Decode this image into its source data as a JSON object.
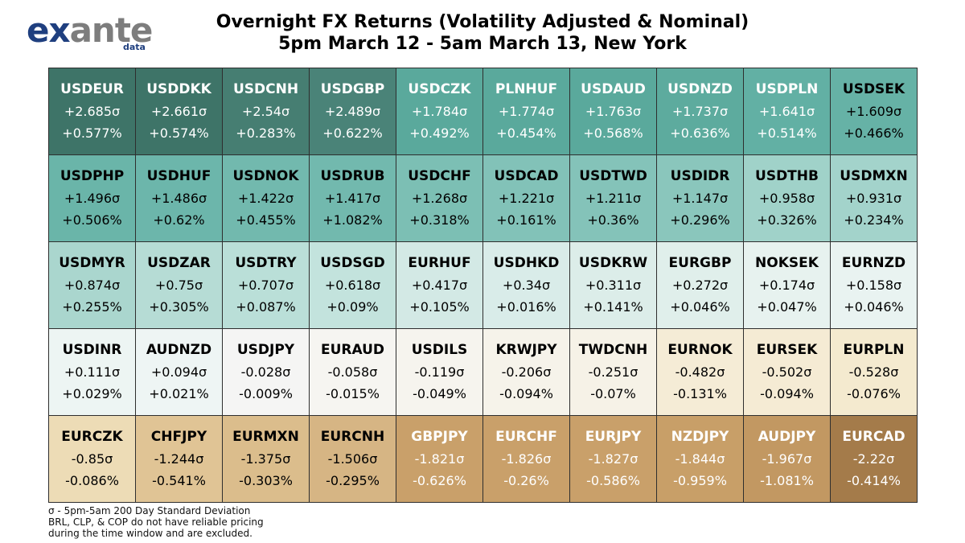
{
  "logo": {
    "word_part1": "ex",
    "word_part2": "ante",
    "sub": "data"
  },
  "title": {
    "line1": "Overnight FX Returns (Volatility Adjusted & Nominal)",
    "line2": "5pm March 12 - 5am March 13, New York"
  },
  "footnote": {
    "line1": "σ - 5pm-5am 200 Day Standard Deviation",
    "line2": "BRL, CLP, & COP do not have reliable pricing",
    "line3": "during the time window and are excluded."
  },
  "chart_data": {
    "type": "heatmap",
    "columns": 10,
    "cells": [
      {
        "pair": "USDEUR",
        "sigma": "+2.685σ",
        "pct": "+0.577%",
        "bg": "#3e7468",
        "fg": "#ffffff"
      },
      {
        "pair": "USDDKK",
        "sigma": "+2.661σ",
        "pct": "+0.574%",
        "bg": "#3e7468",
        "fg": "#ffffff"
      },
      {
        "pair": "USDCNH",
        "sigma": "+2.54σ",
        "pct": "+0.283%",
        "bg": "#467e72",
        "fg": "#ffffff"
      },
      {
        "pair": "USDGBP",
        "sigma": "+2.489σ",
        "pct": "+0.622%",
        "bg": "#4a8378",
        "fg": "#ffffff"
      },
      {
        "pair": "USDCZK",
        "sigma": "+1.784σ",
        "pct": "+0.492%",
        "bg": "#5aa99c",
        "fg": "#ffffff"
      },
      {
        "pair": "PLNHUF",
        "sigma": "+1.774σ",
        "pct": "+0.454%",
        "bg": "#5aa99c",
        "fg": "#ffffff"
      },
      {
        "pair": "USDAUD",
        "sigma": "+1.763σ",
        "pct": "+0.568%",
        "bg": "#5aa99c",
        "fg": "#ffffff"
      },
      {
        "pair": "USDNZD",
        "sigma": "+1.737σ",
        "pct": "+0.636%",
        "bg": "#5dab9e",
        "fg": "#ffffff"
      },
      {
        "pair": "USDPLN",
        "sigma": "+1.641σ",
        "pct": "+0.514%",
        "bg": "#62b0a4",
        "fg": "#ffffff"
      },
      {
        "pair": "USDSEK",
        "sigma": "+1.609σ",
        "pct": "+0.466%",
        "bg": "#66b2a6",
        "fg": "#000000"
      },
      {
        "pair": "USDPHP",
        "sigma": "+1.496σ",
        "pct": "+0.506%",
        "bg": "#6ab5a9",
        "fg": "#000000"
      },
      {
        "pair": "USDHUF",
        "sigma": "+1.486σ",
        "pct": "+0.62%",
        "bg": "#6cb6ab",
        "fg": "#000000"
      },
      {
        "pair": "USDNOK",
        "sigma": "+1.422σ",
        "pct": "+0.455%",
        "bg": "#72b9ae",
        "fg": "#000000"
      },
      {
        "pair": "USDRUB",
        "sigma": "+1.417σ",
        "pct": "+1.082%",
        "bg": "#72b9ae",
        "fg": "#000000"
      },
      {
        "pair": "USDCHF",
        "sigma": "+1.268σ",
        "pct": "+0.318%",
        "bg": "#7cbfb4",
        "fg": "#000000"
      },
      {
        "pair": "USDCAD",
        "sigma": "+1.221σ",
        "pct": "+0.161%",
        "bg": "#82c2b8",
        "fg": "#000000"
      },
      {
        "pair": "USDTWD",
        "sigma": "+1.211σ",
        "pct": "+0.36%",
        "bg": "#84c3b9",
        "fg": "#000000"
      },
      {
        "pair": "USDIDR",
        "sigma": "+1.147σ",
        "pct": "+0.296%",
        "bg": "#8ac6bc",
        "fg": "#000000"
      },
      {
        "pair": "USDTHB",
        "sigma": "+0.958σ",
        "pct": "+0.326%",
        "bg": "#a0d2c9",
        "fg": "#000000"
      },
      {
        "pair": "USDMXN",
        "sigma": "+0.931σ",
        "pct": "+0.234%",
        "bg": "#a3d3cb",
        "fg": "#000000"
      },
      {
        "pair": "USDMYR",
        "sigma": "+0.874σ",
        "pct": "+0.255%",
        "bg": "#aad6ce",
        "fg": "#000000"
      },
      {
        "pair": "USDZAR",
        "sigma": "+0.75σ",
        "pct": "+0.305%",
        "bg": "#b6dcd5",
        "fg": "#000000"
      },
      {
        "pair": "USDTRY",
        "sigma": "+0.707σ",
        "pct": "+0.087%",
        "bg": "#badfd8",
        "fg": "#000000"
      },
      {
        "pair": "USDSGD",
        "sigma": "+0.618σ",
        "pct": "+0.09%",
        "bg": "#c3e3dd",
        "fg": "#000000"
      },
      {
        "pair": "EURHUF",
        "sigma": "+0.417σ",
        "pct": "+0.105%",
        "bg": "#d3e9e5",
        "fg": "#000000"
      },
      {
        "pair": "USDHKD",
        "sigma": "+0.34σ",
        "pct": "+0.016%",
        "bg": "#d9ece9",
        "fg": "#000000"
      },
      {
        "pair": "USDKRW",
        "sigma": "+0.311σ",
        "pct": "+0.141%",
        "bg": "#dcede9",
        "fg": "#000000"
      },
      {
        "pair": "EURGBP",
        "sigma": "+0.272σ",
        "pct": "+0.046%",
        "bg": "#e0efeb",
        "fg": "#000000"
      },
      {
        "pair": "NOKSEK",
        "sigma": "+0.174σ",
        "pct": "+0.047%",
        "bg": "#e7f2ef",
        "fg": "#000000"
      },
      {
        "pair": "EURNZD",
        "sigma": "+0.158σ",
        "pct": "+0.046%",
        "bg": "#e9f3f1",
        "fg": "#000000"
      },
      {
        "pair": "USDINR",
        "sigma": "+0.111σ",
        "pct": "+0.029%",
        "bg": "#edf5f3",
        "fg": "#000000"
      },
      {
        "pair": "AUDNZD",
        "sigma": "+0.094σ",
        "pct": "+0.021%",
        "bg": "#eef5f4",
        "fg": "#000000"
      },
      {
        "pair": "USDJPY",
        "sigma": "-0.028σ",
        "pct": "-0.009%",
        "bg": "#f5f5f4",
        "fg": "#000000"
      },
      {
        "pair": "EURAUD",
        "sigma": "-0.058σ",
        "pct": "-0.015%",
        "bg": "#f6f5f1",
        "fg": "#000000"
      },
      {
        "pair": "USDILS",
        "sigma": "-0.119σ",
        "pct": "-0.049%",
        "bg": "#f6f4ee",
        "fg": "#000000"
      },
      {
        "pair": "KRWJPY",
        "sigma": "-0.206σ",
        "pct": "-0.094%",
        "bg": "#f6f3ea",
        "fg": "#000000"
      },
      {
        "pair": "TWDCNH",
        "sigma": "-0.251σ",
        "pct": "-0.07%",
        "bg": "#f6f2e7",
        "fg": "#000000"
      },
      {
        "pair": "EURNOK",
        "sigma": "-0.482σ",
        "pct": "-0.131%",
        "bg": "#f5ecd6",
        "fg": "#000000"
      },
      {
        "pair": "EURSEK",
        "sigma": "-0.502σ",
        "pct": "-0.094%",
        "bg": "#f5ebd4",
        "fg": "#000000"
      },
      {
        "pair": "EURPLN",
        "sigma": "-0.528σ",
        "pct": "-0.076%",
        "bg": "#f4eacf",
        "fg": "#000000"
      },
      {
        "pair": "EURCZK",
        "sigma": "-0.85σ",
        "pct": "-0.086%",
        "bg": "#eddcb6",
        "fg": "#000000"
      },
      {
        "pair": "CHFJPY",
        "sigma": "-1.244σ",
        "pct": "-0.541%",
        "bg": "#e0c495",
        "fg": "#000000"
      },
      {
        "pair": "EURMXN",
        "sigma": "-1.375σ",
        "pct": "-0.303%",
        "bg": "#dbbd8c",
        "fg": "#000000"
      },
      {
        "pair": "EURCNH",
        "sigma": "-1.506σ",
        "pct": "-0.295%",
        "bg": "#d6b584",
        "fg": "#000000"
      },
      {
        "pair": "GBPJPY",
        "sigma": "-1.821σ",
        "pct": "-0.626%",
        "bg": "#c9a06a",
        "fg": "#ffffff"
      },
      {
        "pair": "EURCHF",
        "sigma": "-1.826σ",
        "pct": "-0.26%",
        "bg": "#c9a06a",
        "fg": "#ffffff"
      },
      {
        "pair": "EURJPY",
        "sigma": "-1.827σ",
        "pct": "-0.586%",
        "bg": "#c9a06a",
        "fg": "#ffffff"
      },
      {
        "pair": "NZDJPY",
        "sigma": "-1.844σ",
        "pct": "-0.959%",
        "bg": "#c89f68",
        "fg": "#ffffff"
      },
      {
        "pair": "AUDJPY",
        "sigma": "-1.967σ",
        "pct": "-1.081%",
        "bg": "#c29862",
        "fg": "#ffffff"
      },
      {
        "pair": "EURCAD",
        "sigma": "-2.22σ",
        "pct": "-0.414%",
        "bg": "#a47b4a",
        "fg": "#ffffff"
      }
    ]
  }
}
